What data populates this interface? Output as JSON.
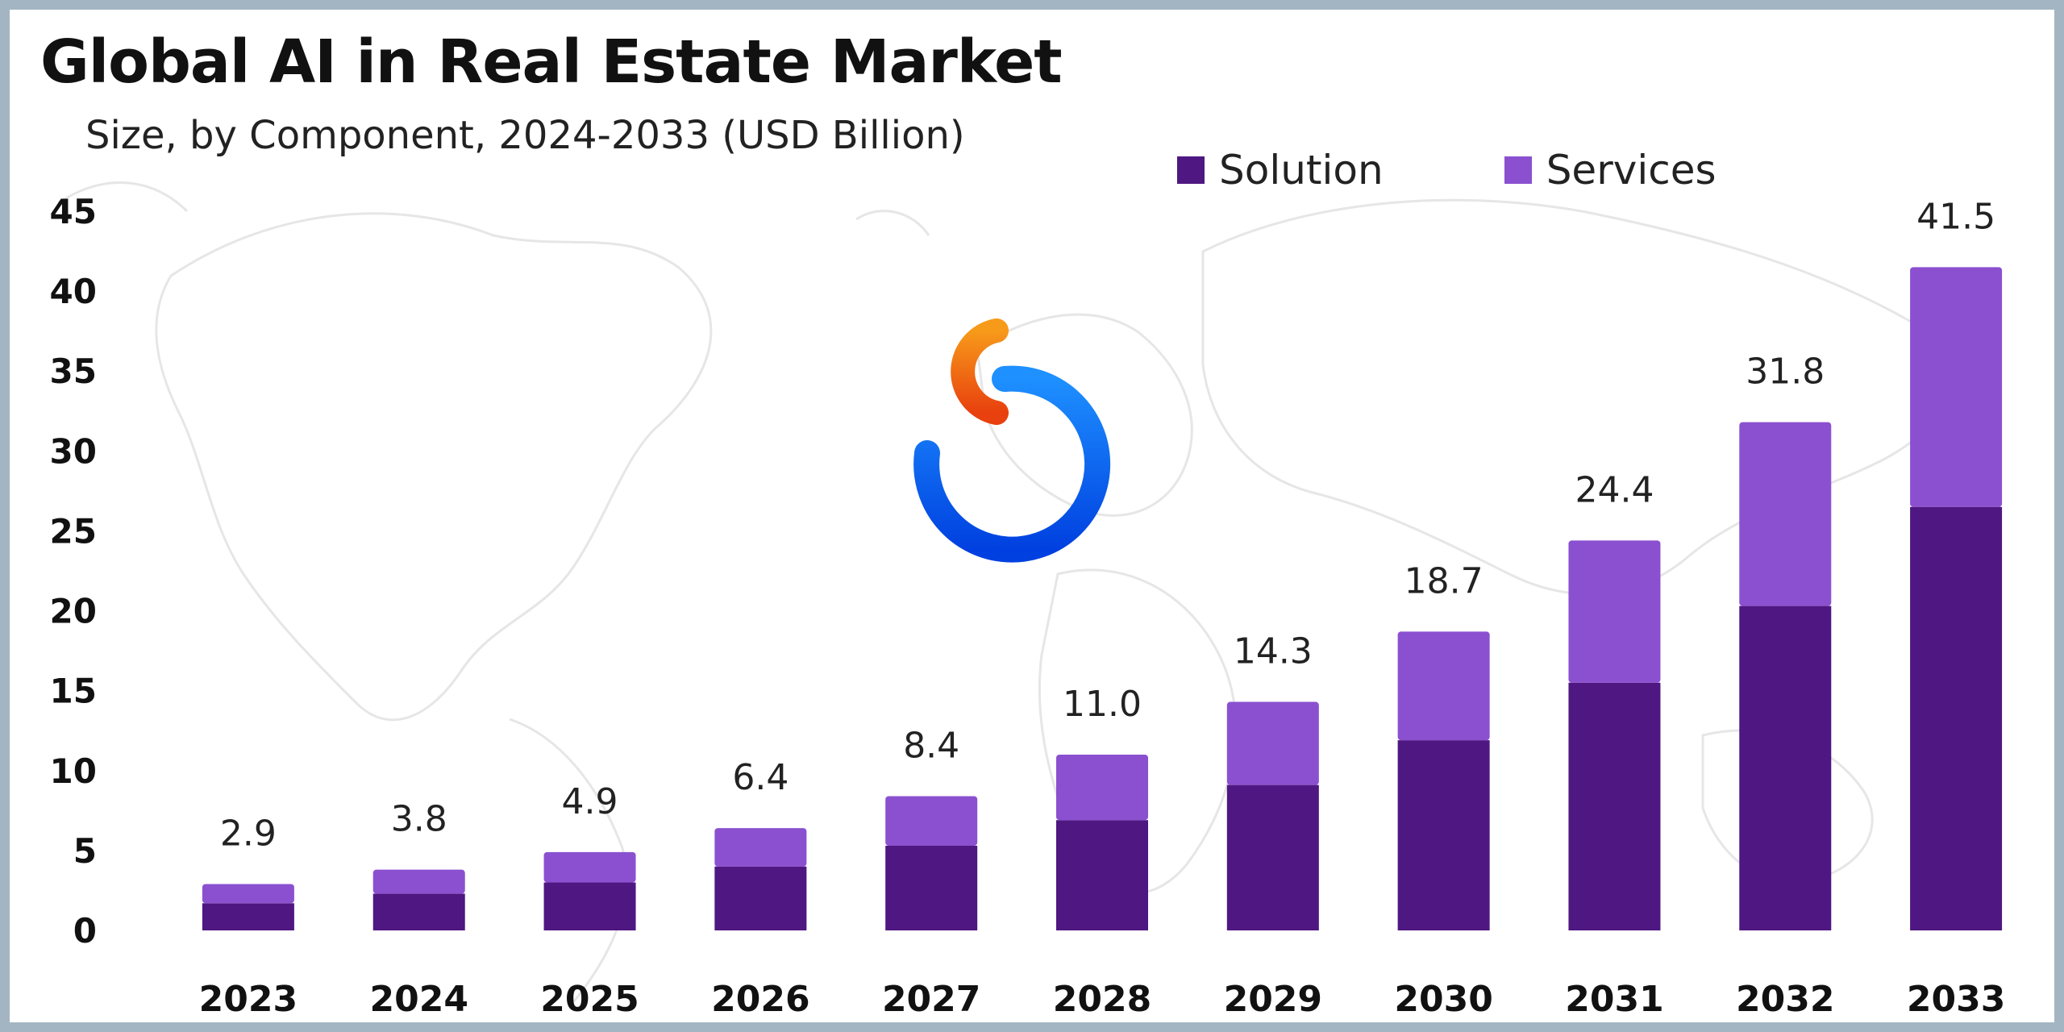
{
  "chart_data": {
    "type": "bar",
    "stacked": true,
    "title": "Global AI in Real Estate Market",
    "subtitle": "Size, by Component, 2024-2033 (USD Billion)",
    "categories": [
      "2023",
      "2024",
      "2025",
      "2026",
      "2027",
      "2028",
      "2029",
      "2030",
      "2031",
      "2032",
      "2033"
    ],
    "series": [
      {
        "name": "Solution",
        "color": "#4f1781",
        "values": [
          1.7,
          2.3,
          3.0,
          4.0,
          5.3,
          6.9,
          9.1,
          11.9,
          15.5,
          20.3,
          26.5
        ]
      },
      {
        "name": "Services",
        "color": "#8b50d0",
        "values": [
          1.2,
          1.5,
          1.9,
          2.4,
          3.1,
          4.1,
          5.2,
          6.8,
          8.9,
          11.5,
          15.0
        ]
      }
    ],
    "totals": [
      "2.9",
      "3.8",
      "4.9",
      "6.4",
      "8.4",
      "11.0",
      "14.3",
      "18.7",
      "24.4",
      "31.8",
      "41.5"
    ],
    "yticks": [
      0,
      5,
      10,
      15,
      20,
      25,
      30,
      35,
      40,
      45
    ],
    "ylim": [
      0,
      45
    ],
    "grid": false,
    "legend_position": "top-right"
  }
}
